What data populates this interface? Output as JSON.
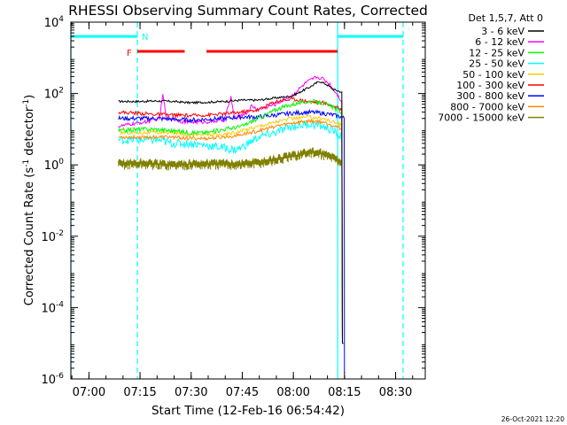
{
  "chart_data": {
    "type": "line",
    "title": "RHESSI Observing Summary Count Rates, Corrected",
    "xlabel": "Start Time (12-Feb-16 06:54:42)",
    "ylabel": "Corrected Count Rate (s⁻¹ detector⁻¹)",
    "ylabel_main": "Corrected Count Rate (s",
    "ylabel_mid": " detector",
    "ylabel_end": ")",
    "ylabel_sup": "-1",
    "y_scale": "log",
    "ylim": [
      1e-06,
      10000.0
    ],
    "x_ticks": [
      {
        "label": "07:00",
        "min": 5.3
      },
      {
        "label": "07:15",
        "min": 20.3
      },
      {
        "label": "07:30",
        "min": 35.3
      },
      {
        "label": "07:45",
        "min": 50.3
      },
      {
        "label": "08:00",
        "min": 65.3
      },
      {
        "label": "08:15",
        "min": 80.3
      },
      {
        "label": "08:30",
        "min": 95.3
      }
    ],
    "xlim_minutes_from_start": [
      0,
      104
    ],
    "y_ticks": [
      {
        "base": "10",
        "exp": "4",
        "value": 4
      },
      {
        "base": "10",
        "exp": "2",
        "value": 2
      },
      {
        "base": "10",
        "exp": "0",
        "value": 0
      },
      {
        "base": "10",
        "exp": "-2",
        "value": -2
      },
      {
        "base": "10",
        "exp": "-4",
        "value": -4
      },
      {
        "base": "10",
        "exp": "-6",
        "value": -6
      }
    ],
    "legend_title": "Det 1,5,7, Att 0",
    "legend_placement": "right",
    "series": [
      {
        "name": "3 - 6 keV",
        "color": "#000000",
        "points": [
          [
            14,
            60
          ],
          [
            20,
            60
          ],
          [
            25,
            62
          ],
          [
            30,
            60
          ],
          [
            35,
            55
          ],
          [
            40,
            57
          ],
          [
            45,
            60
          ],
          [
            50,
            65
          ],
          [
            55,
            65
          ],
          [
            60,
            75
          ],
          [
            65,
            85
          ],
          [
            70,
            150
          ],
          [
            73,
            220
          ],
          [
            75,
            180
          ],
          [
            77,
            130
          ],
          [
            79.5,
            110
          ],
          [
            79.7,
            1e-05
          ],
          [
            80,
            1e-05
          ]
        ]
      },
      {
        "name": "6 - 12 keV",
        "color": "#ff00ff",
        "points": [
          [
            14,
            12
          ],
          [
            18,
            14
          ],
          [
            22,
            16
          ],
          [
            26,
            20
          ],
          [
            27,
            90
          ],
          [
            28,
            22
          ],
          [
            33,
            16
          ],
          [
            40,
            16
          ],
          [
            45,
            18
          ],
          [
            47,
            80
          ],
          [
            48,
            20
          ],
          [
            52,
            30
          ],
          [
            53,
            45
          ],
          [
            55,
            35
          ],
          [
            60,
            50
          ],
          [
            65,
            90
          ],
          [
            69,
            200
          ],
          [
            72,
            290
          ],
          [
            74,
            260
          ],
          [
            76,
            180
          ],
          [
            78,
            100
          ],
          [
            79.5,
            60
          ],
          [
            79.7,
            1e-05
          ]
        ]
      },
      {
        "name": "12 - 25 keV",
        "color": "#00ff00",
        "points": [
          [
            14,
            9
          ],
          [
            20,
            10
          ],
          [
            25,
            10
          ],
          [
            30,
            9
          ],
          [
            35,
            8
          ],
          [
            40,
            8
          ],
          [
            45,
            10
          ],
          [
            50,
            12
          ],
          [
            55,
            20
          ],
          [
            60,
            35
          ],
          [
            65,
            50
          ],
          [
            70,
            60
          ],
          [
            74,
            55
          ],
          [
            77,
            40
          ],
          [
            79.5,
            30
          ],
          [
            79.7,
            1e-05
          ]
        ]
      },
      {
        "name": "25 - 50 keV",
        "color": "#00ffff",
        "points": [
          [
            14,
            5
          ],
          [
            20,
            5
          ],
          [
            25,
            5
          ],
          [
            30,
            4
          ],
          [
            35,
            4
          ],
          [
            40,
            3.5
          ],
          [
            45,
            3
          ],
          [
            48,
            2.6
          ],
          [
            50,
            3
          ],
          [
            55,
            6
          ],
          [
            60,
            8
          ],
          [
            65,
            12
          ],
          [
            70,
            14
          ],
          [
            74,
            12
          ],
          [
            77,
            9
          ],
          [
            79.5,
            6
          ],
          [
            79.7,
            1e-05
          ]
        ]
      },
      {
        "name": "50 - 100 keV",
        "color": "#ffcc00",
        "points": [
          [
            14,
            8
          ],
          [
            20,
            8
          ],
          [
            25,
            8
          ],
          [
            30,
            8
          ],
          [
            35,
            7
          ],
          [
            40,
            7
          ],
          [
            45,
            7
          ],
          [
            50,
            9
          ],
          [
            55,
            12
          ],
          [
            60,
            16
          ],
          [
            65,
            20
          ],
          [
            70,
            22
          ],
          [
            74,
            20
          ],
          [
            77,
            16
          ],
          [
            79.5,
            13
          ],
          [
            79.7,
            1e-05
          ]
        ]
      },
      {
        "name": "100 - 300 keV",
        "color": "#ff0000",
        "points": [
          [
            14,
            30
          ],
          [
            20,
            28
          ],
          [
            25,
            26
          ],
          [
            30,
            25
          ],
          [
            35,
            24
          ],
          [
            40,
            25
          ],
          [
            45,
            27
          ],
          [
            50,
            30
          ],
          [
            55,
            35
          ],
          [
            60,
            60
          ],
          [
            65,
            70
          ],
          [
            70,
            60
          ],
          [
            74,
            55
          ],
          [
            77,
            45
          ],
          [
            79.5,
            35
          ],
          [
            79.7,
            1e-05
          ]
        ]
      },
      {
        "name": "300 - 800 keV",
        "color": "#0000ff",
        "points": [
          [
            14,
            20
          ],
          [
            20,
            20
          ],
          [
            25,
            20
          ],
          [
            30,
            19
          ],
          [
            35,
            18
          ],
          [
            40,
            19
          ],
          [
            45,
            20
          ],
          [
            50,
            22
          ],
          [
            55,
            22
          ],
          [
            60,
            25
          ],
          [
            65,
            28
          ],
          [
            70,
            30
          ],
          [
            74,
            28
          ],
          [
            77,
            25
          ],
          [
            79.5,
            22
          ],
          [
            80.2,
            20
          ],
          [
            80.3,
            1.5e-06
          ]
        ]
      },
      {
        "name": "800 - 7000 keV",
        "color": "#ff8800",
        "points": [
          [
            14,
            6
          ],
          [
            20,
            6
          ],
          [
            25,
            6
          ],
          [
            30,
            6
          ],
          [
            35,
            5.5
          ],
          [
            40,
            5.5
          ],
          [
            45,
            6
          ],
          [
            50,
            7
          ],
          [
            55,
            9
          ],
          [
            60,
            12
          ],
          [
            65,
            15
          ],
          [
            70,
            17
          ],
          [
            74,
            16
          ],
          [
            77,
            13
          ],
          [
            79.5,
            10
          ],
          [
            79.7,
            1e-05
          ]
        ]
      },
      {
        "name": "7000 - 15000 keV",
        "color": "#808000",
        "points": [
          [
            14,
            1.2
          ],
          [
            20,
            1.25
          ],
          [
            25,
            1.2
          ],
          [
            30,
            1.15
          ],
          [
            35,
            1.2
          ],
          [
            40,
            1.2
          ],
          [
            45,
            1.2
          ],
          [
            50,
            1.2
          ],
          [
            55,
            1.3
          ],
          [
            60,
            1.6
          ],
          [
            65,
            2.0
          ],
          [
            70,
            2.6
          ],
          [
            74,
            2.3
          ],
          [
            77,
            1.8
          ],
          [
            79.5,
            1.4
          ],
          [
            79.7,
            1e-05
          ]
        ]
      }
    ],
    "mode_bars": {
      "cyan_label": "N",
      "red_label": "F",
      "cyan_segments": [
        [
          0,
          19.5
        ],
        [
          78.3,
          97.5
        ]
      ],
      "red_segments": [
        [
          19.5,
          33.4
        ],
        [
          39.8,
          78.3
        ]
      ],
      "cyan_vlines": [
        0,
        78.3
      ],
      "cyan_dashed_vlines": [
        19.5,
        97.5
      ]
    },
    "bar_color_cyan": "#00ffff",
    "bar_color_red": "#ff0000"
  },
  "footer": {
    "timestamp": "26-Oct-2021 12:20"
  }
}
